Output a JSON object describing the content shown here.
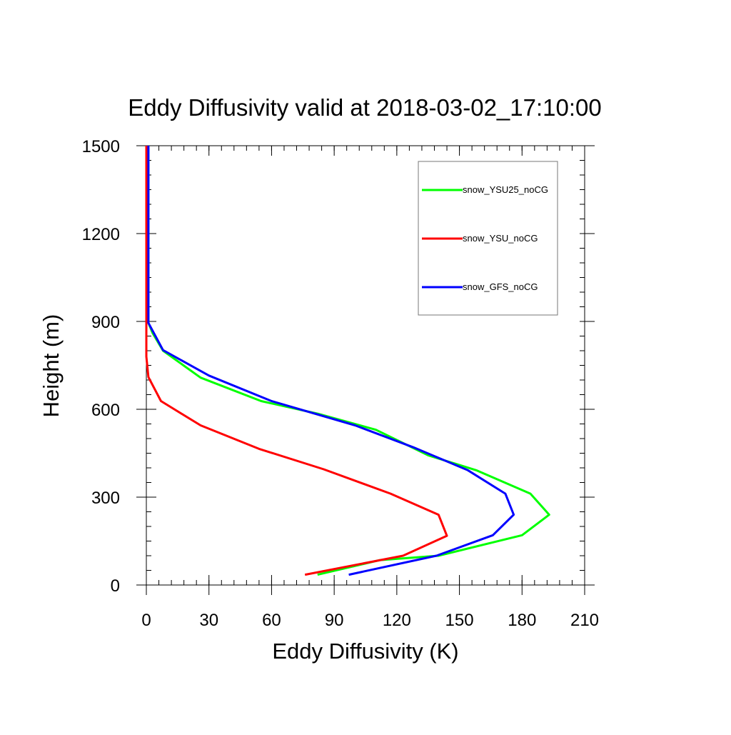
{
  "chart_data": {
    "type": "line",
    "title": "Eddy Diffusivity valid at 2018-03-02_17:10:00",
    "xlabel": "Eddy Diffusivity (K)",
    "ylabel": "Height (m)",
    "xlim": [
      0,
      210
    ],
    "ylim": [
      0,
      1500
    ],
    "x_ticks": [
      "0",
      "30",
      "60",
      "90",
      "120",
      "150",
      "180",
      "210"
    ],
    "y_ticks": [
      "0",
      "300",
      "600",
      "900",
      "1200",
      "1500"
    ],
    "x_tick_values": [
      0,
      30,
      60,
      90,
      120,
      150,
      180,
      210
    ],
    "y_tick_values": [
      0,
      300,
      600,
      900,
      1200,
      1500
    ],
    "grid": false,
    "legend_placement": "top-right",
    "series": [
      {
        "name": "snow_YSU25_noCG",
        "color": "#00ff00",
        "points": [
          [
            82,
            35
          ],
          [
            112,
            85
          ],
          [
            140,
            100
          ],
          [
            180,
            170
          ],
          [
            193,
            240
          ],
          [
            184,
            312
          ],
          [
            158,
            392
          ],
          [
            135,
            443
          ],
          [
            110,
            530
          ],
          [
            82,
            585
          ],
          [
            55,
            628
          ],
          [
            26,
            708
          ],
          [
            8,
            800
          ],
          [
            3,
            860
          ],
          [
            1,
            895
          ],
          [
            1,
            960
          ],
          [
            1,
            1100
          ],
          [
            1,
            1300
          ],
          [
            1,
            1500
          ]
        ]
      },
      {
        "name": "snow_YSU_noCG",
        "color": "#ff0000",
        "points": [
          [
            76,
            35
          ],
          [
            123,
            100
          ],
          [
            144,
            168
          ],
          [
            140,
            240
          ],
          [
            117,
            312
          ],
          [
            85,
            395
          ],
          [
            54,
            465
          ],
          [
            26,
            545
          ],
          [
            7,
            628
          ],
          [
            1,
            710
          ],
          [
            0,
            780
          ],
          [
            0,
            900
          ],
          [
            0,
            1100
          ],
          [
            0,
            1300
          ],
          [
            0,
            1500
          ]
        ]
      },
      {
        "name": "snow_GFS_noCG",
        "color": "#0000ff",
        "points": [
          [
            97,
            35
          ],
          [
            139,
            100
          ],
          [
            166,
            170
          ],
          [
            176,
            240
          ],
          [
            172,
            312
          ],
          [
            154,
            392
          ],
          [
            128,
            470
          ],
          [
            100,
            545
          ],
          [
            60,
            628
          ],
          [
            30,
            715
          ],
          [
            8,
            802
          ],
          [
            1,
            895
          ],
          [
            1,
            960
          ],
          [
            1,
            1100
          ],
          [
            1,
            1300
          ],
          [
            1,
            1500
          ]
        ]
      }
    ]
  }
}
